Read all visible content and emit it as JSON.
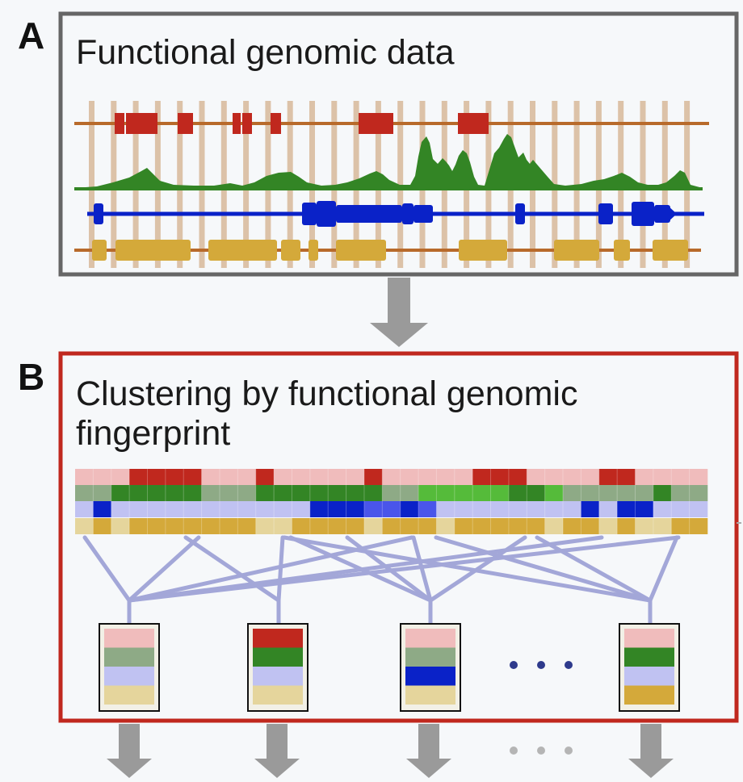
{
  "panel_a": {
    "letter": "A",
    "title": "Functional genomic data",
    "tracks": [
      {
        "name": "red-track",
        "color": "#c0281e",
        "line": "#b86a2b"
      },
      {
        "name": "green-signal-track",
        "color": "#338525"
      },
      {
        "name": "blue-gene-track",
        "color": "#0a22c8"
      },
      {
        "name": "yellow-track",
        "color": "#d4a93a",
        "line": "#b86a2b"
      }
    ],
    "stripe_color": "#dcc2a8"
  },
  "panel_b": {
    "letter": "B",
    "title_line1": "Clustering by functional genomic",
    "title_line2": "fingerprint",
    "connector_color": "#a3a7d8",
    "clusters": [
      {
        "name": "cluster-1",
        "colors": [
          "#f0bcbc",
          "#8eaa86",
          "#c0c2f2",
          "#e5d59c"
        ]
      },
      {
        "name": "cluster-2",
        "colors": [
          "#c0281e",
          "#338525",
          "#c0c2f2",
          "#e5d59c"
        ]
      },
      {
        "name": "cluster-3",
        "colors": [
          "#f0bcbc",
          "#8eaa86",
          "#0a22c8",
          "#e5d59c"
        ]
      },
      {
        "name": "cluster-4",
        "colors": [
          "#f0bcbc",
          "#338525",
          "#c0c2f2",
          "#d4a93a"
        ]
      }
    ],
    "ellipsis": "• • •"
  },
  "colors": {
    "panel_a_border": "#666666",
    "panel_b_border": "#c0281e",
    "arrow": "#9a9a9a",
    "ellipsis_dots_dark": "#2e3a8c",
    "ellipsis_dots_light": "#b5b5b5"
  }
}
